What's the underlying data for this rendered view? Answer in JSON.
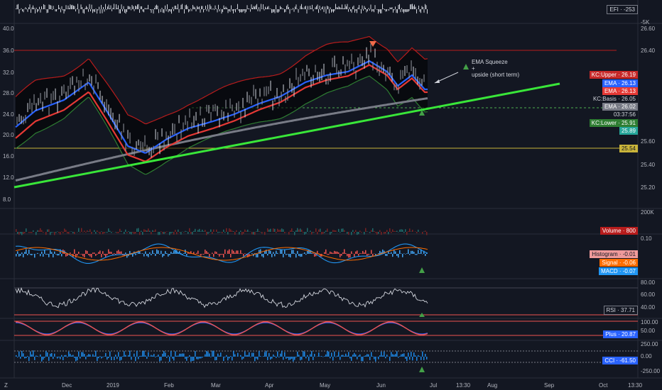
{
  "colors": {
    "bg": "#131722",
    "grid": "#2a2e39",
    "up": "#26a69a",
    "down": "#ef5350",
    "ema_blue": "#2962ff",
    "ema_red": "#e53935",
    "basis": "#787b86",
    "trend": "#39e639",
    "kc": "#b71c1c"
  },
  "efi": {
    "label": "EFI · -253",
    "axis": "-5K"
  },
  "price_axis": {
    "left": [
      "40.0",
      "36.0",
      "32.0",
      "28.0",
      "24.0",
      "20.0",
      "16.0",
      "12.0",
      "8.0"
    ],
    "right": [
      "26.60",
      "26.40",
      "25.60",
      "25.40",
      "25.20"
    ]
  },
  "price_tags": {
    "kc_upper": "KC:Upper · 26.19",
    "ema1": "EMA · 26.13",
    "ema2": "EMA · 26.13",
    "kc_basis": "KC:Basis · 26.05",
    "ema3": "EMA · 26.02",
    "time": "03:37:56",
    "kc_lower": "KC:Lower · 25.91",
    "price": "25.89",
    "hline": "25.54"
  },
  "annotation": {
    "line1": "EMA Squeeze",
    "line2": "+",
    "line3": "upside (short term)"
  },
  "volume": {
    "axis": "200K",
    "label": "Volume · 800"
  },
  "macd": {
    "axis": "0.10",
    "histogram": "Histogram · -0.01",
    "signal": "Signal · -0.06",
    "macd": "MACD · -0.07"
  },
  "rsi": {
    "axis": [
      "80.00",
      "60.00",
      "40.00"
    ],
    "label": "RSI · 37.71"
  },
  "plus": {
    "axis": [
      "100.00",
      "50.00"
    ],
    "label": "Plus · 20.87"
  },
  "cci": {
    "axis": [
      "250.00",
      "0.00",
      "-250.00"
    ],
    "label": "CCI · -61.50"
  },
  "time_axis": [
    "Dec",
    "2019",
    "Feb",
    "Mar",
    "Apr",
    "May",
    "Jun",
    "Jul",
    "13:30",
    "Aug",
    "Sep",
    "Oct",
    "13:30"
  ],
  "footer": "Z"
}
